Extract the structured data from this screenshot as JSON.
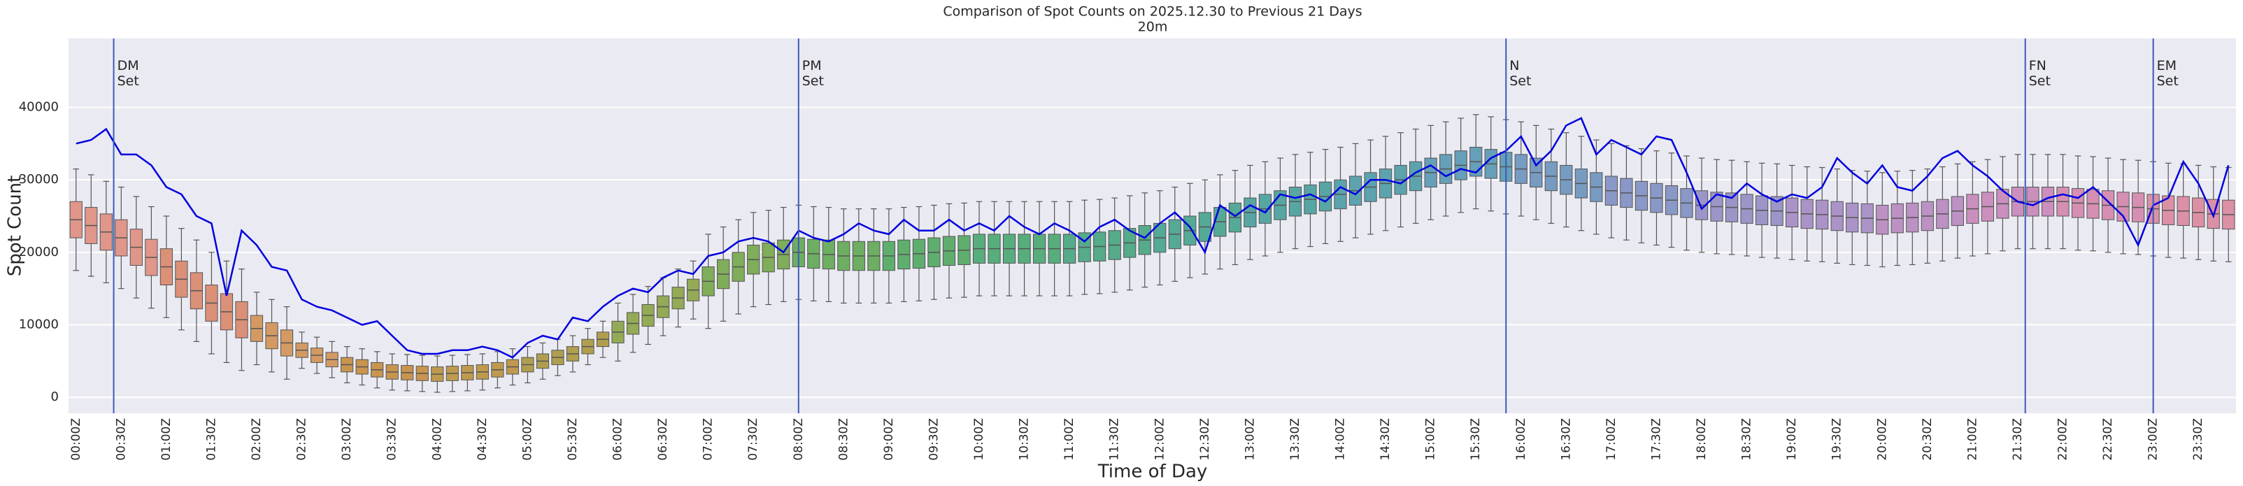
{
  "chart_data": {
    "type": "box",
    "title": "Comparison of Spot Counts on 2025.12.30 to Previous 21 Days",
    "subtitle": "20m",
    "x_label": "Time of Day",
    "y_label": "Spot Count",
    "ylim": [
      -2200,
      49500
    ],
    "yticks": [
      0,
      10000,
      20000,
      30000,
      40000
    ],
    "grid": true,
    "categories": [
      "00:00Z",
      null,
      null,
      "00:30Z",
      null,
      null,
      "01:00Z",
      null,
      null,
      "01:30Z",
      null,
      null,
      "02:00Z",
      null,
      null,
      "02:30Z",
      null,
      null,
      "03:00Z",
      null,
      null,
      "03:30Z",
      null,
      null,
      "04:00Z",
      null,
      null,
      "04:30Z",
      null,
      null,
      "05:00Z",
      null,
      null,
      "05:30Z",
      null,
      null,
      "06:00Z",
      null,
      null,
      "06:30Z",
      null,
      null,
      "07:00Z",
      null,
      null,
      "07:30Z",
      null,
      null,
      "08:00Z",
      null,
      null,
      "08:30Z",
      null,
      null,
      "09:00Z",
      null,
      null,
      "09:30Z",
      null,
      null,
      "10:00Z",
      null,
      null,
      "10:30Z",
      null,
      null,
      "11:00Z",
      null,
      null,
      "11:30Z",
      null,
      null,
      "12:00Z",
      null,
      null,
      "12:30Z",
      null,
      null,
      "13:00Z",
      null,
      null,
      "13:30Z",
      null,
      null,
      "14:00Z",
      null,
      null,
      "14:30Z",
      null,
      null,
      "15:00Z",
      null,
      null,
      "15:30Z",
      null,
      null,
      "16:00Z",
      null,
      null,
      "16:30Z",
      null,
      null,
      "17:00Z",
      null,
      null,
      "17:30Z",
      null,
      null,
      "18:00Z",
      null,
      null,
      "18:30Z",
      null,
      null,
      "19:00Z",
      null,
      null,
      "19:30Z",
      null,
      null,
      "20:00Z",
      null,
      null,
      "20:30Z",
      null,
      null,
      "21:00Z",
      null,
      null,
      "21:30Z",
      null,
      null,
      "22:00Z",
      null,
      null,
      "22:30Z",
      null,
      null,
      "23:00Z",
      null,
      null,
      "23:30Z",
      null,
      null
    ],
    "box_colors": [
      "#e0968a",
      "#db9078",
      "#d39a64",
      "#c8954f",
      "#bf9a4e",
      "#b09e50",
      "#94aa56",
      "#7fad59",
      "#6dae62",
      "#5fae6e",
      "#58ad7c",
      "#55ab8a",
      "#55a997",
      "#57a6a3",
      "#5ca3ae",
      "#669fb8",
      "#779bc1",
      "#8998c6",
      "#9b95c8",
      "#ab93c8",
      "#bc91c4",
      "#cb8fbe",
      "#d58fb3",
      "#dc90a6"
    ],
    "whislo": [
      17500,
      16700,
      15800,
      15000,
      13700,
      12300,
      11000,
      9300,
      7700,
      6000,
      4800,
      3700,
      4500,
      3500,
      2500,
      4000,
      3300,
      2700,
      2000,
      1700,
      1300,
      1000,
      900,
      800,
      700,
      800,
      900,
      1000,
      1300,
      1700,
      2000,
      2500,
      3000,
      3500,
      4500,
      5500,
      5000,
      6200,
      7300,
      8500,
      9700,
      10800,
      9500,
      10500,
      11500,
      12500,
      12800,
      13200,
      13500,
      13300,
      13200,
      13000,
      13000,
      13000,
      13000,
      13200,
      13300,
      13500,
      13700,
      13800,
      14000,
      14000,
      14000,
      14000,
      14000,
      14000,
      14000,
      14200,
      14300,
      14500,
      14800,
      15200,
      15500,
      16000,
      16500,
      17000,
      17700,
      18300,
      19000,
      19500,
      20000,
      20500,
      20800,
      21200,
      21500,
      22000,
      22500,
      23000,
      23500,
      24000,
      24500,
      25000,
      25500,
      26000,
      25700,
      25300,
      25000,
      24500,
      24000,
      23500,
      23000,
      22500,
      22000,
      21700,
      21300,
      21000,
      20700,
      20300,
      20000,
      19800,
      19700,
      19500,
      19300,
      19200,
      19000,
      18800,
      18700,
      18500,
      18300,
      18200,
      18000,
      18200,
      18300,
      18500,
      18800,
      19200,
      19500,
      19800,
      20200,
      20500,
      20500,
      20500,
      20500,
      20300,
      20200,
      20000,
      19800,
      19700,
      19500,
      19300,
      19200,
      19000,
      18800,
      18700
    ],
    "q1": [
      22000,
      21200,
      20300,
      19500,
      18200,
      16800,
      15500,
      13800,
      12200,
      10500,
      9300,
      8200,
      7700,
      6700,
      5700,
      5500,
      4800,
      4200,
      3500,
      3200,
      2800,
      2500,
      2400,
      2300,
      2200,
      2300,
      2400,
      2500,
      2800,
      3200,
      3500,
      4000,
      4500,
      5000,
      6000,
      7000,
      7500,
      8700,
      9800,
      11000,
      12200,
      13300,
      14000,
      15000,
      16000,
      17000,
      17300,
      17700,
      18000,
      17800,
      17700,
      17500,
      17500,
      17500,
      17500,
      17700,
      17800,
      18000,
      18200,
      18300,
      18500,
      18500,
      18500,
      18500,
      18500,
      18500,
      18500,
      18700,
      18800,
      19000,
      19300,
      19700,
      20000,
      20500,
      21000,
      21500,
      22200,
      22800,
      23500,
      24000,
      24500,
      25000,
      25300,
      25700,
      26000,
      26500,
      27000,
      27500,
      28000,
      28500,
      29000,
      29500,
      30000,
      30500,
      30200,
      29800,
      29500,
      29000,
      28500,
      28000,
      27500,
      27000,
      26500,
      26200,
      25800,
      25500,
      25200,
      24800,
      24500,
      24300,
      24200,
      24000,
      23800,
      23700,
      23500,
      23300,
      23200,
      23000,
      22800,
      22700,
      22500,
      22700,
      22800,
      23000,
      23300,
      23700,
      24000,
      24300,
      24700,
      25000,
      25000,
      25000,
      25000,
      24800,
      24700,
      24500,
      24300,
      24200,
      24000,
      23800,
      23700,
      23500,
      23300,
      23200
    ],
    "median": [
      24500,
      23700,
      22800,
      22000,
      20700,
      19300,
      18000,
      16300,
      14700,
      13000,
      11800,
      10700,
      9500,
      8500,
      7500,
      6500,
      5800,
      5200,
      4500,
      4200,
      3800,
      3500,
      3400,
      3300,
      3200,
      3300,
      3400,
      3500,
      3800,
      4200,
      4500,
      5000,
      5500,
      6000,
      7000,
      8000,
      9000,
      10200,
      11300,
      12500,
      13700,
      14800,
      16000,
      17000,
      18000,
      19000,
      19300,
      19700,
      20000,
      19800,
      19700,
      19500,
      19500,
      19500,
      19500,
      19700,
      19800,
      20000,
      20200,
      20300,
      20500,
      20500,
      20500,
      20500,
      20500,
      20500,
      20500,
      20700,
      20800,
      21000,
      21300,
      21700,
      22000,
      22500,
      23000,
      23500,
      24200,
      24800,
      25500,
      26000,
      26500,
      27000,
      27300,
      27700,
      28000,
      28500,
      29000,
      29500,
      30000,
      30500,
      31000,
      31500,
      32000,
      32500,
      32200,
      31800,
      31500,
      31000,
      30500,
      30000,
      29500,
      29000,
      28500,
      28200,
      27800,
      27500,
      27200,
      26800,
      26500,
      26300,
      26200,
      26000,
      25800,
      25700,
      25500,
      25300,
      25200,
      25000,
      24800,
      24700,
      24500,
      24700,
      24800,
      25000,
      25300,
      25700,
      26000,
      26300,
      26700,
      27000,
      27000,
      27000,
      27000,
      26800,
      26700,
      26500,
      26300,
      26200,
      26000,
      25800,
      25700,
      25500,
      25300,
      25200
    ],
    "q3": [
      27000,
      26200,
      25300,
      24500,
      23200,
      21800,
      20500,
      18800,
      17200,
      15500,
      14300,
      13200,
      11300,
      10300,
      9300,
      7500,
      6800,
      6200,
      5500,
      5200,
      4800,
      4500,
      4400,
      4300,
      4200,
      4300,
      4400,
      4500,
      4800,
      5200,
      5500,
      6000,
      6500,
      7000,
      8000,
      9000,
      10500,
      11700,
      12800,
      14000,
      15200,
      16300,
      18000,
      19000,
      20000,
      21000,
      21300,
      21700,
      22000,
      21800,
      21700,
      21500,
      21500,
      21500,
      21500,
      21700,
      21800,
      22000,
      22200,
      22300,
      22500,
      22500,
      22500,
      22500,
      22500,
      22500,
      22500,
      22700,
      22800,
      23000,
      23300,
      23700,
      24000,
      24500,
      25000,
      25500,
      26200,
      26800,
      27500,
      28000,
      28500,
      29000,
      29300,
      29700,
      30000,
      30500,
      31000,
      31500,
      32000,
      32500,
      33000,
      33500,
      34000,
      34500,
      34200,
      33800,
      33500,
      33000,
      32500,
      32000,
      31500,
      31000,
      30500,
      30200,
      29800,
      29500,
      29200,
      28800,
      28500,
      28300,
      28200,
      28000,
      27800,
      27700,
      27500,
      27300,
      27200,
      27000,
      26800,
      26700,
      26500,
      26700,
      26800,
      27000,
      27300,
      27700,
      28000,
      28300,
      28700,
      29000,
      29000,
      29000,
      29000,
      28800,
      28700,
      28500,
      28300,
      28200,
      28000,
      27800,
      27700,
      27500,
      27300,
      27200
    ],
    "whishi": [
      31500,
      30700,
      29800,
      29000,
      27700,
      26300,
      25000,
      23300,
      21700,
      20000,
      18800,
      17700,
      14500,
      13500,
      12500,
      9000,
      8300,
      7700,
      7000,
      6700,
      6300,
      6000,
      5900,
      5800,
      5700,
      5800,
      5900,
      6000,
      6300,
      6700,
      7000,
      7500,
      8000,
      8500,
      9500,
      10500,
      13000,
      14200,
      15300,
      16500,
      17700,
      18800,
      22500,
      23500,
      24500,
      25500,
      25800,
      26200,
      26500,
      26300,
      26200,
      26000,
      26000,
      26000,
      26000,
      26200,
      26300,
      26500,
      26700,
      26800,
      27000,
      27000,
      27000,
      27000,
      27000,
      27000,
      27000,
      27200,
      27300,
      27500,
      27800,
      28200,
      28500,
      29000,
      29500,
      30000,
      30700,
      31300,
      32000,
      32500,
      33000,
      33500,
      33800,
      34200,
      34500,
      35000,
      35500,
      36000,
      36500,
      37000,
      37500,
      38000,
      38500,
      39000,
      38700,
      38300,
      38000,
      37500,
      37000,
      36500,
      36000,
      35500,
      35000,
      34700,
      34300,
      34000,
      33700,
      33300,
      33000,
      32800,
      32700,
      32500,
      32300,
      32200,
      32000,
      31800,
      31700,
      31500,
      31300,
      31200,
      31000,
      31200,
      31300,
      31500,
      31800,
      32200,
      32500,
      32800,
      33200,
      33500,
      33500,
      33500,
      33500,
      33300,
      33200,
      33000,
      32800,
      32700,
      32500,
      32300,
      32200,
      32000,
      31800,
      31700
    ],
    "line_color": "#0000e0",
    "line": [
      35000,
      35500,
      37000,
      33500,
      33500,
      32000,
      29000,
      28000,
      25000,
      24000,
      14000,
      23000,
      21000,
      18000,
      17500,
      13500,
      12500,
      12000,
      11000,
      10000,
      10500,
      8500,
      6500,
      6000,
      6000,
      6500,
      6500,
      7000,
      6500,
      5500,
      7500,
      8500,
      8000,
      11000,
      10500,
      12500,
      14000,
      15000,
      14500,
      16500,
      17500,
      17000,
      19500,
      20000,
      21500,
      22000,
      21500,
      20000,
      23000,
      22000,
      21500,
      22500,
      24000,
      23000,
      22500,
      24500,
      23000,
      23000,
      24500,
      23000,
      24000,
      23000,
      25000,
      23500,
      22500,
      24000,
      23000,
      21500,
      23500,
      24500,
      23000,
      22000,
      24000,
      25500,
      23500,
      20000,
      26500,
      25000,
      26500,
      25500,
      28000,
      27500,
      28000,
      27000,
      29000,
      28000,
      30000,
      30000,
      29500,
      31000,
      32000,
      30500,
      31500,
      31000,
      33000,
      34000,
      36000,
      32000,
      34000,
      37500,
      38500,
      33500,
      35500,
      34500,
      33500,
      36000,
      35500,
      31000,
      26000,
      28000,
      27500,
      29500,
      28000,
      27000,
      28000,
      27500,
      29000,
      33000,
      31000,
      29500,
      32000,
      29000,
      28500,
      30500,
      33000,
      34000,
      32000,
      30500,
      28500,
      27000,
      26500,
      27500,
      28000,
      27500,
      29000,
      27000,
      25000,
      21000,
      26500,
      27500,
      32500,
      29500,
      25000,
      32000
    ],
    "vline_color": "#3a5bb8",
    "vlines": [
      {
        "x": 2.5,
        "label": "DM\nSet"
      },
      {
        "x": 48,
        "label": "PM\nSet"
      },
      {
        "x": 95,
        "label": "N\nSet"
      },
      {
        "x": 129.5,
        "label": "FN\nSet"
      },
      {
        "x": 138,
        "label": "EM\nSet"
      }
    ]
  }
}
